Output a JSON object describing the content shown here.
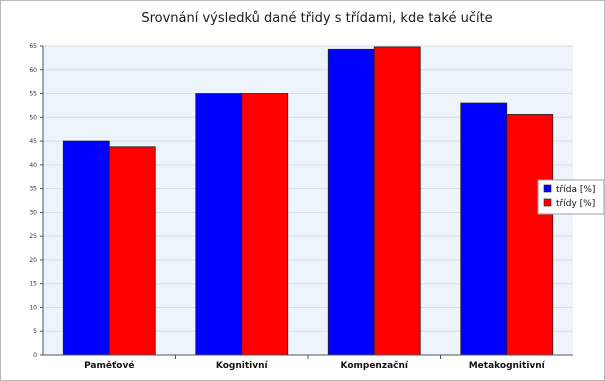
{
  "chart_data": {
    "type": "bar",
    "title": "Srovnání výsledků dané třidy s třídami, kde také učíte",
    "categories": [
      "Paměťové",
      "Kognitivní",
      "Kompenzační",
      "Metakognitivní"
    ],
    "series": [
      {
        "name": "třída [%]",
        "color": "#0000ff",
        "values": [
          45,
          55,
          64.3,
          53
        ]
      },
      {
        "name": "třídy [%]",
        "color": "#ff0000",
        "values": [
          43.8,
          55,
          64.8,
          50.6
        ]
      }
    ],
    "ylim": [
      0,
      65
    ],
    "yticks": [
      0,
      5,
      10,
      15,
      20,
      25,
      30,
      35,
      40,
      45,
      50,
      55,
      60,
      65
    ],
    "grid": true,
    "legend_position": "right",
    "plot_background": "#eef4fb"
  }
}
